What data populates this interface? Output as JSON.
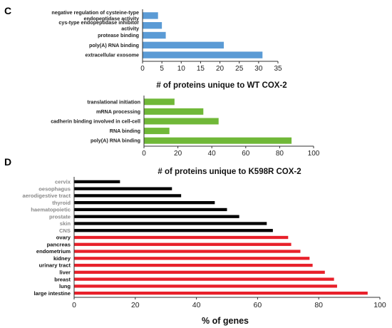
{
  "panels": [
    {
      "letter": "C"
    },
    {
      "letter": "D"
    }
  ],
  "chart_data": [
    {
      "type": "bar",
      "orientation": "horizontal",
      "categories": [
        "negative regulation of cysteine-type endopeptidase activity",
        "cys-type endopeptidase inhibitor activity",
        "protease binding",
        "poly(A) RNA binding",
        "extracellular exosome"
      ],
      "values": [
        4,
        5,
        6,
        21,
        31
      ],
      "xlabel": "# of proteins unique to WT COX-2",
      "xlim": [
        0,
        35
      ],
      "xticks": [
        0,
        5,
        10,
        15,
        20,
        25,
        30,
        35
      ],
      "bar_color": "#5b9bd5",
      "grid": false
    },
    {
      "type": "bar",
      "orientation": "horizontal",
      "categories": [
        "translational initiation",
        "mRNA processing",
        "cadherin binding involved in cell-cell",
        "RNA binding",
        "poly(A) RNA binding"
      ],
      "values": [
        18,
        35,
        44,
        15,
        87
      ],
      "xlabel": "# of proteins unique to K598R COX-2",
      "xlim": [
        0,
        100
      ],
      "xticks": [
        0,
        20,
        40,
        60,
        80,
        100
      ],
      "bar_color": "#70b838",
      "grid": false
    },
    {
      "type": "bar",
      "orientation": "horizontal",
      "categories": [
        "cervix",
        "oesophagus",
        "aerodigestive tract",
        "thyroid",
        "haematopoietic",
        "prostate",
        "skin",
        "CNS",
        "ovary",
        "pancreas",
        "endometrium",
        "kidney",
        "urinary tract",
        "liver",
        "breast",
        "lung",
        "large intestine"
      ],
      "values": [
        15,
        32,
        35,
        46,
        50,
        54,
        63,
        65,
        70,
        71,
        74,
        77,
        78,
        82,
        85,
        86,
        96
      ],
      "bar_colors": [
        "#000000",
        "#000000",
        "#000000",
        "#000000",
        "#000000",
        "#000000",
        "#000000",
        "#000000",
        "#e8202a",
        "#e8202a",
        "#e8202a",
        "#e8202a",
        "#e8202a",
        "#e8202a",
        "#e8202a",
        "#e8202a",
        "#e8202a"
      ],
      "label_colors": [
        "#8a8a8a",
        "#8a8a8a",
        "#8a8a8a",
        "#8a8a8a",
        "#8a8a8a",
        "#8a8a8a",
        "#8a8a8a",
        "#8a8a8a",
        "#111111",
        "#111111",
        "#111111",
        "#111111",
        "#111111",
        "#111111",
        "#111111",
        "#111111",
        "#111111"
      ],
      "xlabel": "% of genes",
      "xlim": [
        0,
        100
      ],
      "xticks": [
        0,
        20,
        40,
        60,
        80,
        100
      ],
      "grid": false
    }
  ]
}
